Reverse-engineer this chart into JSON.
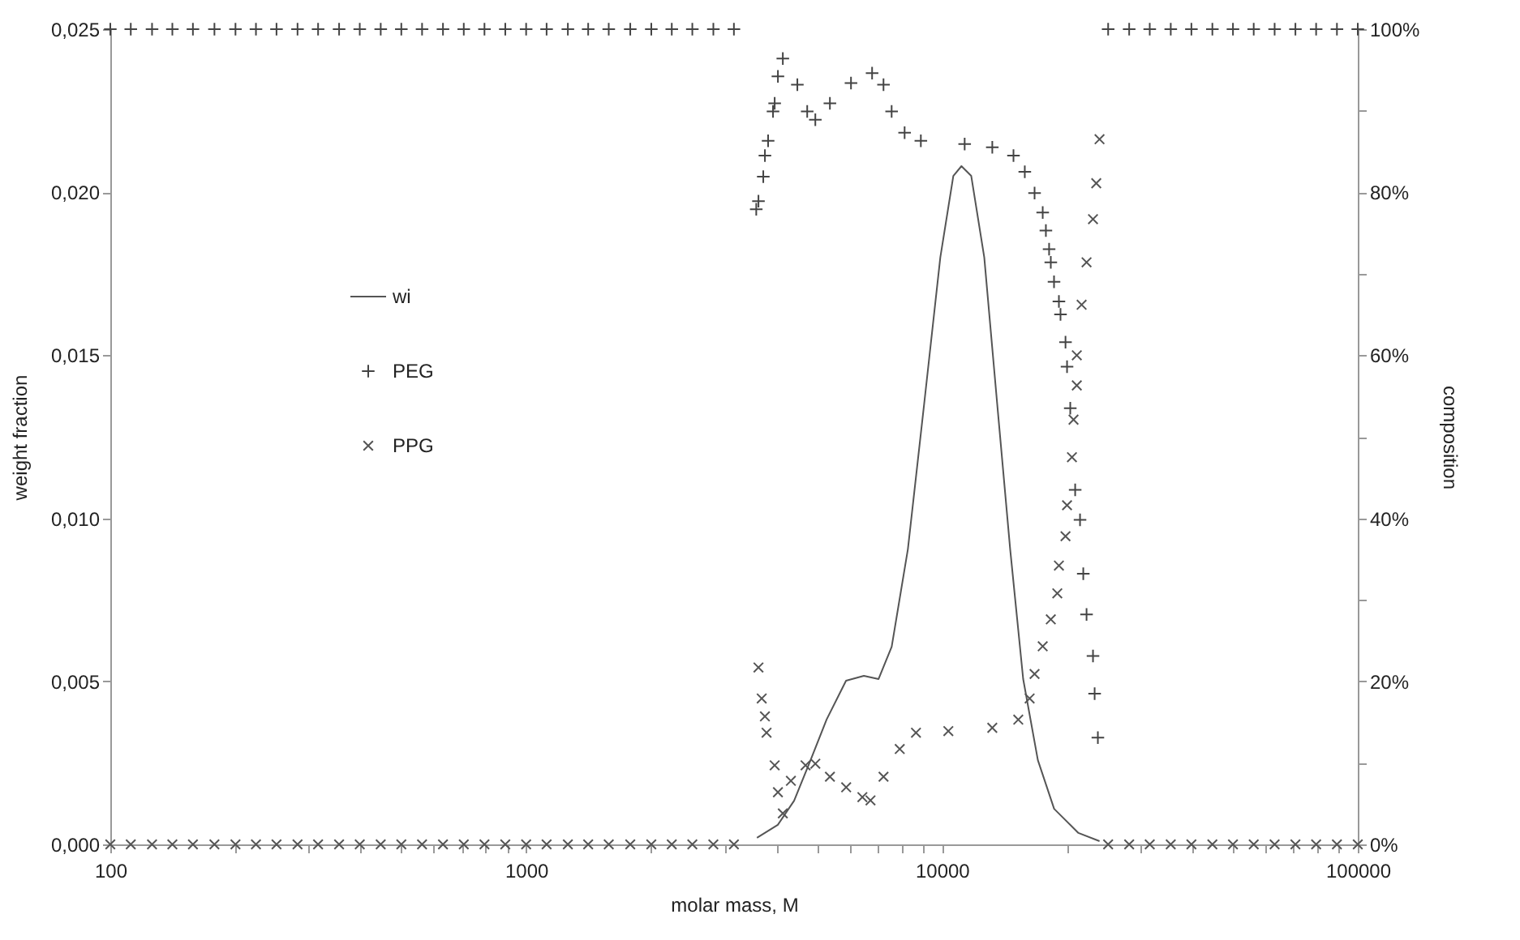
{
  "chart_data": {
    "type": "scatter",
    "xlabel": "molar mass, M",
    "ylabel": "weight fraction",
    "y2label": "composition",
    "log": "x",
    "grid": false,
    "legend": "left",
    "xlim": [
      100,
      100000
    ],
    "xticks": [
      100,
      {
        "value": 200,
        "label": null
      },
      {
        "value": 300,
        "label": null
      },
      {
        "value": 400,
        "label": null
      },
      {
        "value": 500,
        "label": null
      },
      {
        "value": 600,
        "label": null
      },
      {
        "value": 700,
        "label": null
      },
      {
        "value": 800,
        "label": null
      },
      {
        "value": 900,
        "label": null
      },
      1000,
      {
        "value": 2000,
        "label": null
      },
      {
        "value": 3000,
        "label": null
      },
      {
        "value": 4000,
        "label": null
      },
      {
        "value": 5000,
        "label": null
      },
      {
        "value": 6000,
        "label": null
      },
      {
        "value": 7000,
        "label": null
      },
      {
        "value": 8000,
        "label": null
      },
      {
        "value": 9000,
        "label": null
      },
      10000,
      {
        "value": 20000,
        "label": null
      },
      {
        "value": 30000,
        "label": null
      },
      {
        "value": 40000,
        "label": null
      },
      {
        "value": 50000,
        "label": null
      },
      {
        "value": 60000,
        "label": null
      },
      {
        "value": 70000,
        "label": null
      },
      {
        "value": 80000,
        "label": null
      },
      {
        "value": 90000,
        "label": null
      },
      100000
    ],
    "ylim": [
      0,
      0.025
    ],
    "yticks": [
      {
        "value": 0,
        "label": "0,000"
      },
      {
        "value": 0.005,
        "label": "0,005"
      },
      {
        "value": 0.01,
        "label": "0,010"
      },
      {
        "value": 0.015,
        "label": "0,015"
      },
      {
        "value": 0.02,
        "label": "0,020"
      },
      {
        "value": 0.025,
        "label": "0,025"
      }
    ],
    "y2lim": [
      0,
      100
    ],
    "y2ticks": [
      {
        "value": 0,
        "label": "0%"
      },
      {
        "value": 10,
        "label": null
      },
      {
        "value": 20,
        "label": "20%"
      },
      {
        "value": 30,
        "label": null
      },
      {
        "value": 40,
        "label": "40%"
      },
      {
        "value": 50,
        "label": null
      },
      {
        "value": 60,
        "label": "60%"
      },
      {
        "value": 70,
        "label": null
      },
      {
        "value": 80,
        "label": "80%"
      },
      {
        "value": 90,
        "label": null
      },
      {
        "value": 100,
        "label": "100%"
      }
    ],
    "series": [
      {
        "name": "wi",
        "type": "line",
        "color": "#555555",
        "line_style": "solid",
        "marker": "none",
        "x": [
          3590,
          4030,
          4410,
          4830,
          5280,
          5880,
          6490,
          7040,
          7570,
          8280,
          9060,
          9910,
          10650,
          11140,
          11760,
          12640,
          13580,
          14590,
          15680,
          17010,
          18610,
          21290,
          23930
        ],
        "values": [
          0.0002,
          0.0006,
          0.00134,
          0.00258,
          0.00383,
          0.00502,
          0.00517,
          0.00507,
          0.00606,
          0.00905,
          0.0135,
          0.018,
          0.0205,
          0.0208,
          0.0205,
          0.018,
          0.0135,
          0.00905,
          0.00507,
          0.00258,
          0.00109,
          0.00035,
          0.0001
        ]
      },
      {
        "name": "PEG",
        "type": "scatter",
        "axis": "y2",
        "marker": "cross",
        "color": "#444444",
        "x": [
          3576,
          3620,
          3718,
          3752,
          3819,
          3924,
          3960,
          4032,
          4143,
          4490,
          4742,
          4960,
          5377,
          6043,
          6792,
          7235,
          7568,
          8132,
          8897,
          11340,
          13215,
          14860,
          15820,
          16700,
          17470,
          17780,
          18100,
          18270,
          18600,
          19110,
          19280,
          19820,
          19990,
          20350,
          20910,
          21480,
          21870,
          22270,
          23080,
          23290,
          23710,
          100,
          112,
          126,
          141,
          158,
          178,
          200,
          224,
          251,
          282,
          316,
          355,
          398,
          447,
          501,
          562,
          631,
          708,
          794,
          891,
          1000,
          1120,
          1260,
          1410,
          1580,
          1780,
          2000,
          2240,
          2510,
          2820,
          3160,
          25100,
          28200,
          31600,
          35500,
          39800,
          44700,
          50100,
          56200,
          63100,
          70800,
          79400,
          89100,
          100000
        ],
        "values": [
          77.9,
          78.9,
          81.9,
          84.5,
          86.3,
          89.9,
          90.9,
          94.2,
          96.4,
          93.2,
          89.9,
          88.9,
          90.9,
          93.4,
          94.6,
          93.2,
          89.9,
          87.3,
          86.3,
          85.9,
          85.5,
          84.5,
          82.5,
          79.9,
          77.5,
          75.3,
          73.0,
          71.4,
          69.0,
          66.6,
          65.0,
          61.6,
          58.6,
          53.5,
          43.5,
          39.8,
          33.2,
          28.2,
          23.1,
          18.5,
          13.1,
          100,
          100,
          100,
          100,
          100,
          100,
          100,
          100,
          100,
          100,
          100,
          100,
          100,
          100,
          100,
          100,
          100,
          100,
          100,
          100,
          100,
          100,
          100,
          100,
          100,
          100,
          100,
          100,
          100,
          100,
          100,
          100,
          100,
          100,
          100,
          100,
          100,
          100,
          100,
          100,
          100,
          100,
          100,
          100
        ]
      },
      {
        "name": "PPG",
        "type": "scatter",
        "axis": "y2",
        "marker": "x",
        "color": "#555555",
        "x": [
          3620,
          3686,
          3752,
          3786,
          3960,
          4032,
          4143,
          4332,
          4698,
          4960,
          5377,
          5883,
          6436,
          6732,
          7235,
          7915,
          8660,
          10360,
          13215,
          15260,
          16250,
          16700,
          17470,
          18270,
          18940,
          19110,
          19820,
          19990,
          20540,
          20720,
          21100,
          21100,
          21670,
          22270,
          23080,
          23500,
          23930,
          100,
          112,
          126,
          141,
          158,
          178,
          200,
          224,
          251,
          282,
          316,
          355,
          398,
          447,
          501,
          562,
          631,
          708,
          794,
          891,
          1000,
          1120,
          1260,
          1410,
          1580,
          1780,
          2000,
          2240,
          2510,
          2820,
          3160,
          25100,
          28200,
          31600,
          35500,
          39800,
          44700,
          50100,
          56200,
          63100,
          70800,
          79400,
          89100,
          100000
        ],
        "values": [
          21.7,
          17.9,
          15.7,
          13.7,
          9.7,
          6.4,
          3.8,
          7.8,
          9.7,
          9.9,
          8.3,
          7.0,
          5.8,
          5.4,
          8.3,
          11.7,
          13.7,
          13.9,
          14.3,
          15.3,
          17.9,
          20.9,
          24.3,
          27.6,
          30.8,
          34.2,
          37.8,
          41.6,
          47.5,
          52.1,
          56.3,
          60.0,
          66.2,
          71.4,
          76.7,
          81.1,
          86.5,
          0,
          0,
          0,
          0,
          0,
          0,
          0,
          0,
          0,
          0,
          0,
          0,
          0,
          0,
          0,
          0,
          0,
          0,
          0,
          0,
          0,
          0,
          0,
          0,
          0,
          0,
          0,
          0,
          0,
          0,
          0,
          0,
          0,
          0,
          0,
          0,
          0,
          0,
          0,
          0,
          0,
          0,
          0,
          0
        ]
      }
    ]
  }
}
